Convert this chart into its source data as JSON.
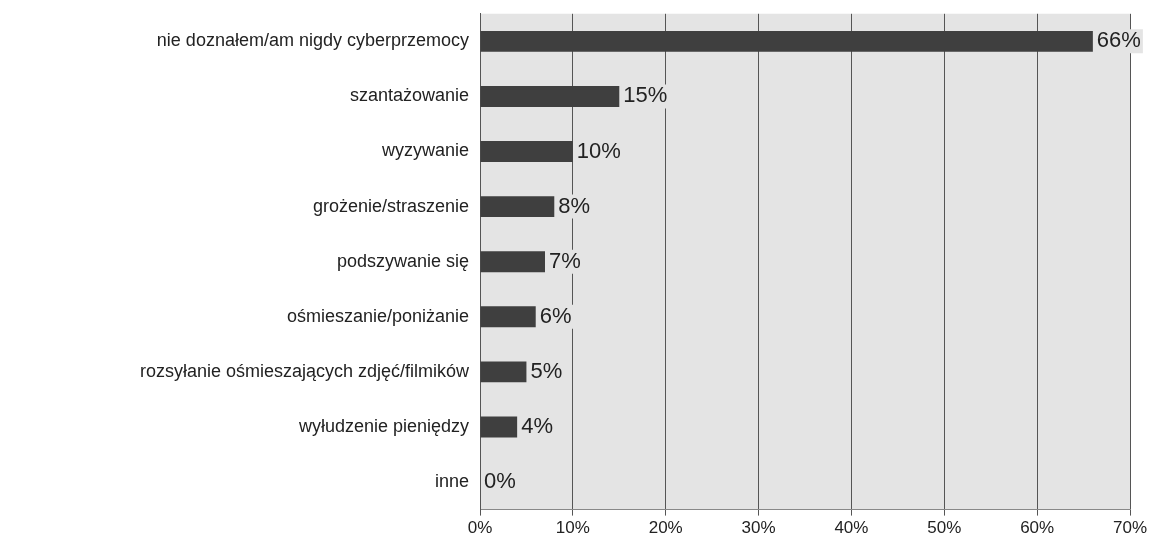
{
  "chart_data": {
    "type": "bar",
    "orientation": "horizontal",
    "categories": [
      "nie doznałem/am nigdy cyberprzemocy",
      "szantażowanie",
      "wyzywanie",
      "grożenie/straszenie",
      "podszywanie się",
      "ośmieszanie/poniżanie",
      "rozsyłanie ośmieszających zdjęć/filmików",
      "wyłudzenie pieniędzy",
      "inne"
    ],
    "values": [
      66,
      15,
      10,
      8,
      7,
      6,
      5,
      4,
      0
    ],
    "color": "#3f3f3f",
    "xlim": [
      0,
      70
    ],
    "xticks": [
      {
        "value": 0,
        "label": "0%"
      },
      {
        "value": 10,
        "label": "10%"
      },
      {
        "value": 20,
        "label": "20%"
      },
      {
        "value": 30,
        "label": "30%"
      },
      {
        "value": 40,
        "label": "40%"
      },
      {
        "value": 50,
        "label": "50%"
      },
      {
        "value": 60,
        "label": "60%"
      },
      {
        "value": 70,
        "label": "70%"
      }
    ],
    "value_labels": [
      "66%",
      "15%",
      "10%",
      "8%",
      "7%",
      "6%",
      "5%",
      "4%",
      "0%"
    ],
    "grid": "x",
    "legend": false
  }
}
